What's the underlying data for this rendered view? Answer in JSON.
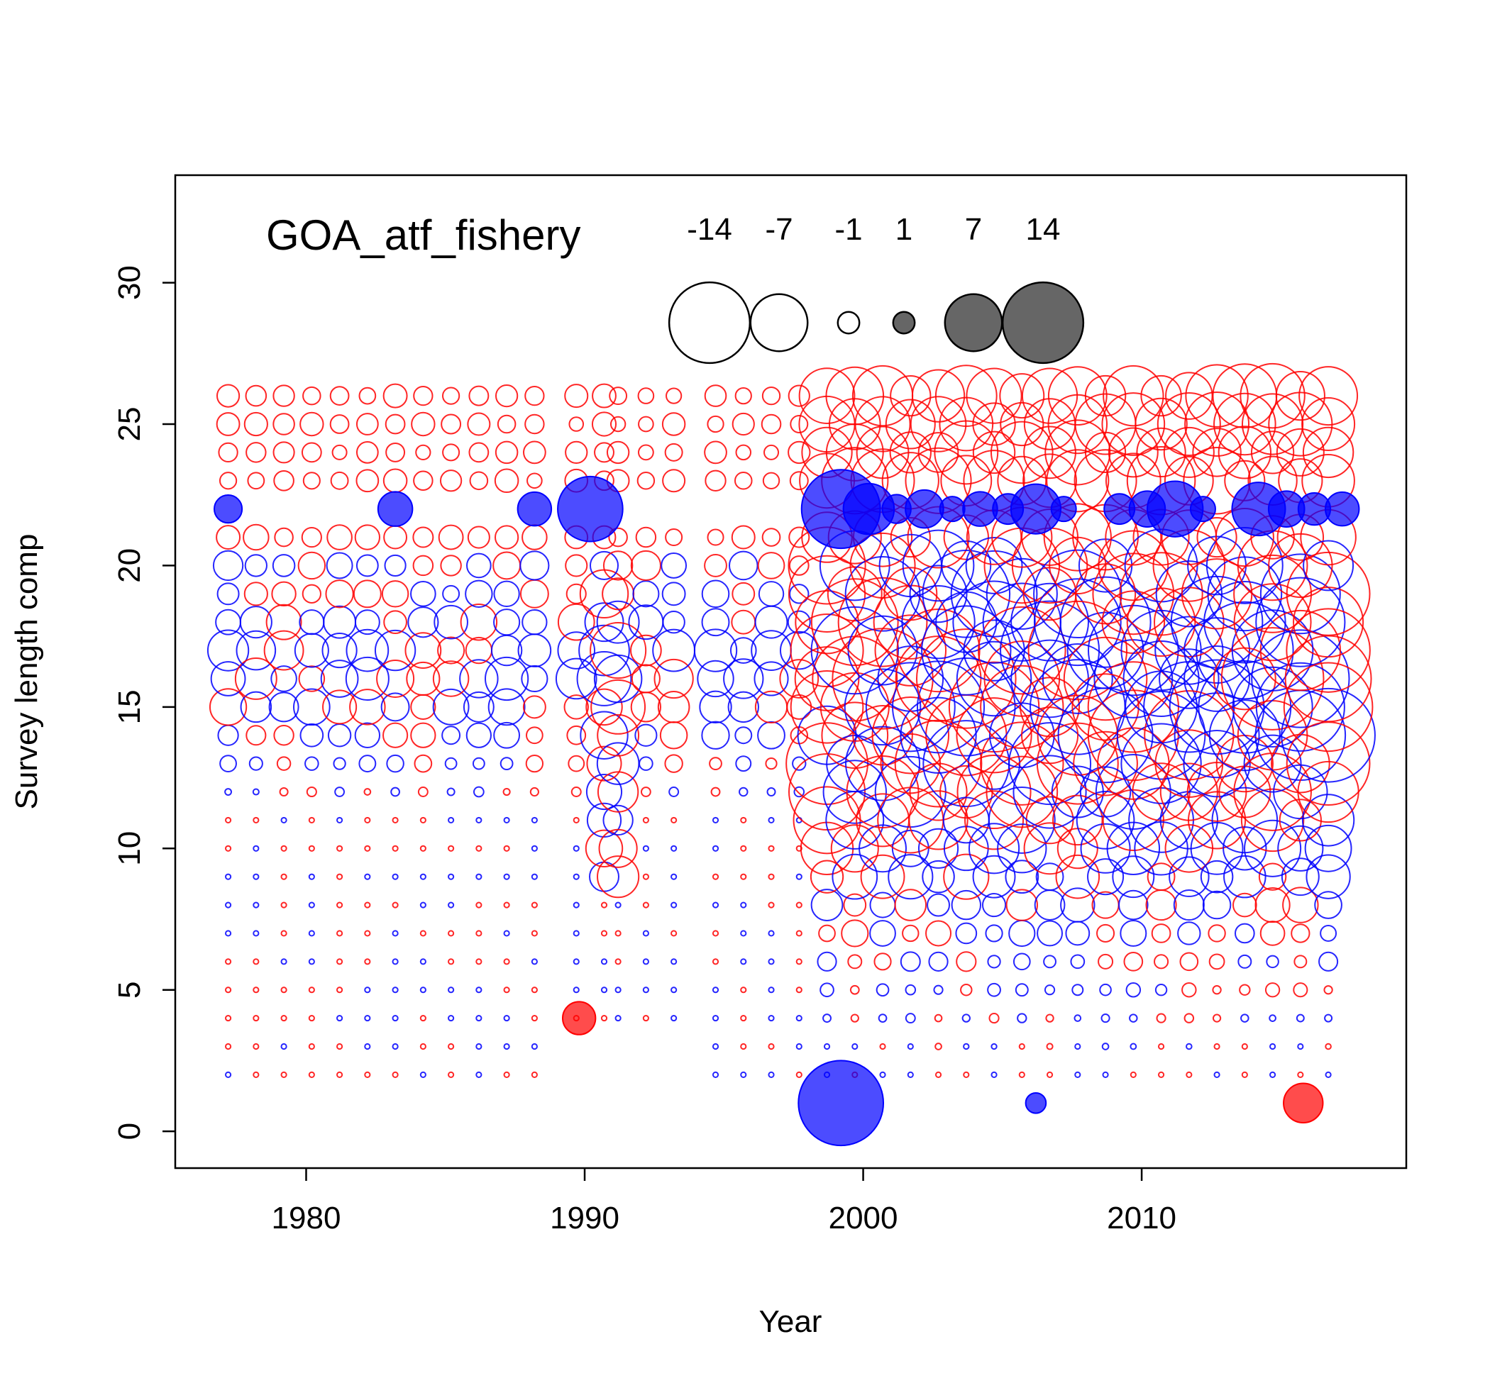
{
  "chart_data": {
    "type": "scatter",
    "subtype": "bubble residual plot",
    "title": "GOA_atf_fishery",
    "xlabel": "Year",
    "ylabel": "Survey length comp",
    "xlim": [
      1975.3,
      2019.5
    ],
    "ylim": [
      -1.3,
      33.8
    ],
    "x_ticks": [
      1980,
      1990,
      2000,
      2010
    ],
    "y_ticks": [
      0,
      5,
      10,
      15,
      20,
      25,
      30
    ],
    "colors": {
      "negative": "#ff0000",
      "positive": "#0000ff",
      "legend_fill": "#666666",
      "axis": "#000000"
    },
    "bubble_scale": "area proportional to |residual|",
    "legend": {
      "values": [
        -14,
        -7,
        -1,
        1,
        7,
        14
      ],
      "labels": [
        "-14",
        "-7",
        "-1",
        "1",
        "7",
        "14"
      ]
    },
    "years": [
      1977.2,
      1978.2,
      1979.2,
      1980.2,
      1981.2,
      1982.2,
      1983.2,
      1984.2,
      1985.2,
      1986.2,
      1987.2,
      1988.2,
      1989.7,
      1990.7,
      1991.2,
      1992.2,
      1993.2,
      1994.7,
      1995.7,
      1996.7,
      1997.7,
      1998.7,
      1999.7,
      2000.7,
      2001.7,
      2002.7,
      2003.7,
      2004.7,
      2005.7,
      2006.7,
      2007.7,
      2008.7,
      2009.7,
      2010.7,
      2011.7,
      2012.7,
      2013.7,
      2014.7,
      2015.7,
      2016.7
    ],
    "length_bins": [
      1,
      2,
      3,
      4,
      5,
      6,
      7,
      8,
      9,
      10,
      11,
      12,
      13,
      14,
      15,
      16,
      17,
      18,
      19,
      20,
      21,
      22,
      23,
      24,
      25,
      26
    ],
    "highlighted_points": [
      {
        "year": 1977.2,
        "bin": 22,
        "residual": 1.5,
        "filled": true
      },
      {
        "year": 1983.2,
        "bin": 22,
        "residual": 2.3,
        "filled": true
      },
      {
        "year": 1988.2,
        "bin": 22,
        "residual": 2.2,
        "filled": true
      },
      {
        "year": 1990.2,
        "bin": 22,
        "residual": 8.2,
        "filled": true
      },
      {
        "year": 1989.8,
        "bin": 4,
        "residual": -2.1,
        "filled": true
      },
      {
        "year": 1999.2,
        "bin": 22,
        "residual": 12.0,
        "filled": true
      },
      {
        "year": 2000.2,
        "bin": 22,
        "residual": 5.0,
        "filled": true
      },
      {
        "year": 2001.2,
        "bin": 22,
        "residual": 1.6,
        "filled": true
      },
      {
        "year": 2002.2,
        "bin": 22,
        "residual": 2.8,
        "filled": true
      },
      {
        "year": 2003.2,
        "bin": 22,
        "residual": 1.2,
        "filled": true
      },
      {
        "year": 2004.2,
        "bin": 22,
        "residual": 2.3,
        "filled": true
      },
      {
        "year": 2005.2,
        "bin": 22,
        "residual": 1.8,
        "filled": true
      },
      {
        "year": 2006.2,
        "bin": 22,
        "residual": 4.8,
        "filled": true
      },
      {
        "year": 2007.2,
        "bin": 22,
        "residual": 1.2,
        "filled": true
      },
      {
        "year": 2009.2,
        "bin": 22,
        "residual": 1.8,
        "filled": true
      },
      {
        "year": 2010.2,
        "bin": 22,
        "residual": 2.5,
        "filled": true
      },
      {
        "year": 2011.2,
        "bin": 22,
        "residual": 6.0,
        "filled": true
      },
      {
        "year": 2012.2,
        "bin": 22,
        "residual": 1.2,
        "filled": true
      },
      {
        "year": 2014.2,
        "bin": 22,
        "residual": 5.5,
        "filled": true
      },
      {
        "year": 2015.2,
        "bin": 22,
        "residual": 2.5,
        "filled": true
      },
      {
        "year": 2016.2,
        "bin": 22,
        "residual": 2.0,
        "filled": true
      },
      {
        "year": 2017.2,
        "bin": 22,
        "residual": 2.2,
        "filled": true
      },
      {
        "year": 1999.2,
        "bin": 1,
        "residual": 14.0,
        "filled": true
      },
      {
        "year": 2006.2,
        "bin": 1,
        "residual": 0.8,
        "filled": true
      },
      {
        "year": 2015.8,
        "bin": 1,
        "residual": -3.0,
        "filled": true
      }
    ],
    "residual_grid_note": "open circles: one per year x length bin; red = negative, blue = positive; sizes approximated from figure"
  }
}
